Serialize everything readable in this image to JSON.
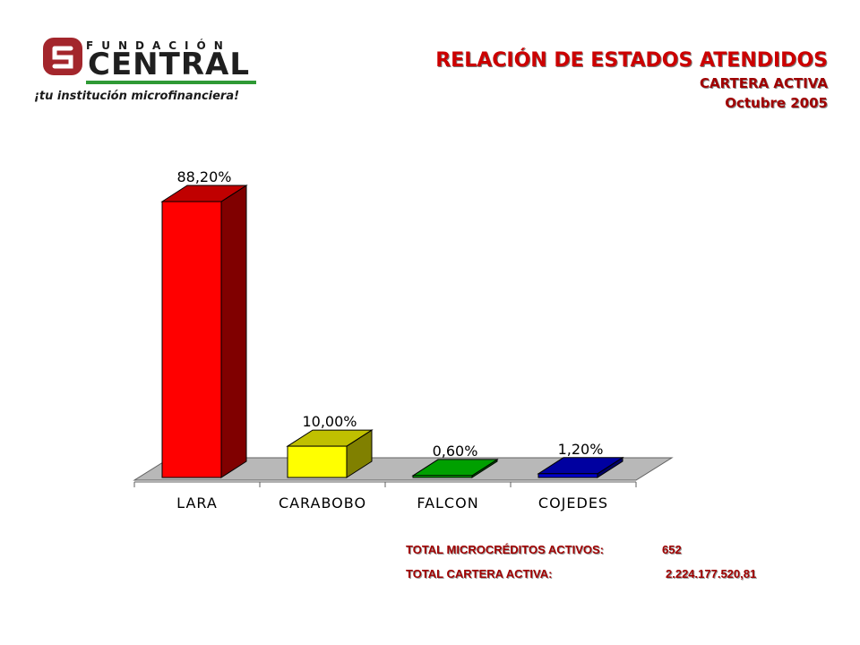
{
  "logo": {
    "line1": "FUNDACIÓN",
    "line2": "CENTRAL",
    "tagline": "¡tu institución microfinanciera!",
    "colors": {
      "mark": "#a3262c",
      "accent": "#2f9a35"
    }
  },
  "header": {
    "title": "RELACIÓN DE ESTADOS ATENDIDOS",
    "subtitle1": "CARTERA ACTIVA",
    "subtitle2": "Octubre 2005"
  },
  "chart_data": {
    "type": "bar",
    "style": "3d",
    "categories": [
      "LARA",
      "CARABOBO",
      "FALCON",
      "COJEDES"
    ],
    "values": [
      88.2,
      10.0,
      0.6,
      1.2
    ],
    "labels": [
      "88,20%",
      "10,00%",
      "0,60%",
      "1,20%"
    ],
    "colors": [
      "#ff0000",
      "#ffff00",
      "#00c000",
      "#0000cc"
    ],
    "side_colors": [
      "#800000",
      "#808000",
      "#006000",
      "#000066"
    ],
    "top_colors": [
      "#c00000",
      "#c0c000",
      "#00a000",
      "#0000a0"
    ],
    "ylim": [
      0,
      100
    ],
    "grid": false,
    "legend": "none"
  },
  "totals": {
    "microcreditos_label": "TOTAL MICROCRÉDITOS ACTIVOS:",
    "microcreditos_value": "652",
    "cartera_label": "TOTAL CARTERA ACTIVA:",
    "cartera_value": "2.224.177.520,81"
  }
}
